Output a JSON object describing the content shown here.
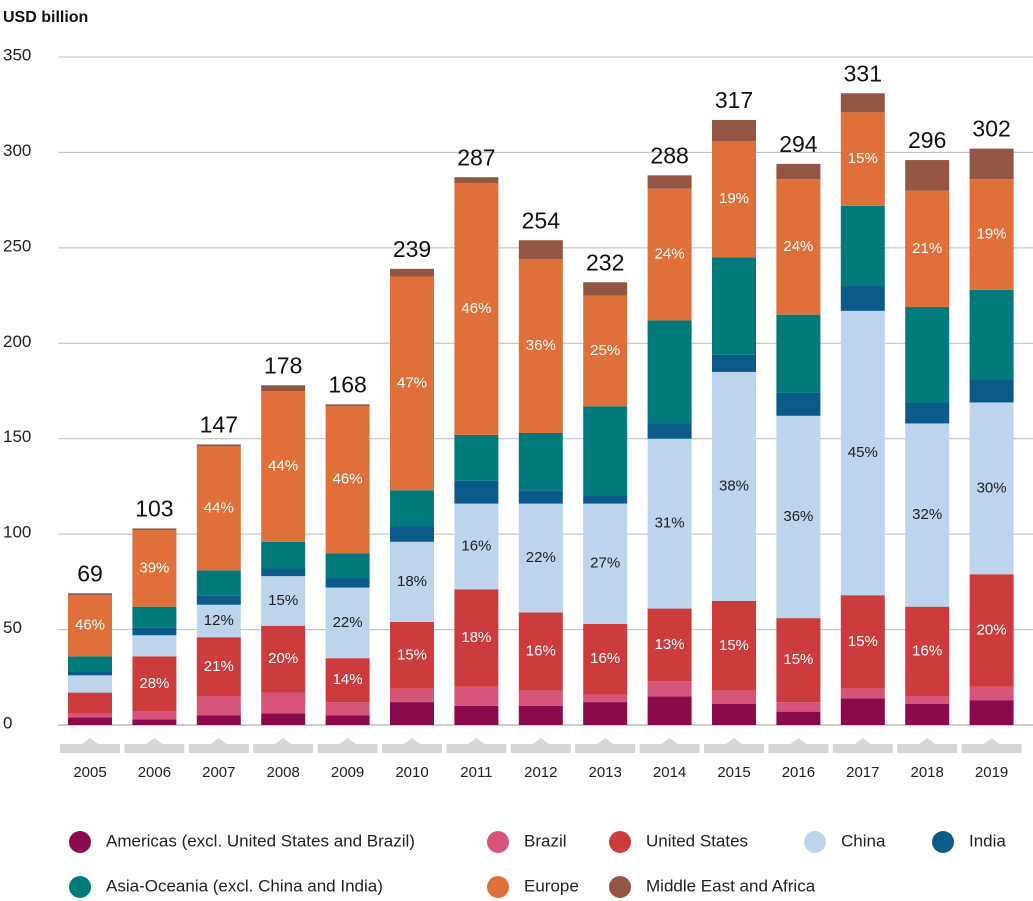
{
  "chart_data": {
    "type": "stacked-bar",
    "y_label": "USD billion",
    "categories": [
      "2005",
      "2006",
      "2007",
      "2008",
      "2009",
      "2010",
      "2011",
      "2012",
      "2013",
      "2014",
      "2015",
      "2016",
      "2017",
      "2018",
      "2019"
    ],
    "totals": [
      69,
      103,
      147,
      178,
      168,
      239,
      287,
      254,
      232,
      288,
      317,
      294,
      331,
      296,
      302
    ],
    "ylim": [
      0,
      350
    ],
    "yticks": [
      0,
      50,
      100,
      150,
      200,
      250,
      300,
      350
    ],
    "grid": true,
    "series": [
      {
        "name": "Americas (excl. United States and Brazil)",
        "color": "#8b0a4a",
        "values": [
          4,
          3,
          5,
          6,
          5,
          12,
          10,
          10,
          12,
          15,
          11,
          7,
          14,
          11,
          13
        ]
      },
      {
        "name": "Brazil",
        "color": "#d6547a",
        "values": [
          2,
          4,
          10,
          11,
          7,
          7,
          10,
          8,
          4,
          8,
          7,
          5,
          5,
          4,
          7
        ]
      },
      {
        "name": "United States",
        "color": "#cc3c3c",
        "values": [
          11,
          29,
          31,
          35,
          23,
          35,
          51,
          41,
          37,
          38,
          47,
          44,
          49,
          47,
          59
        ],
        "share_labels": [
          null,
          "28%",
          "21%",
          "20%",
          "14%",
          "15%",
          "18%",
          "16%",
          "16%",
          "13%",
          "15%",
          "15%",
          "15%",
          "16%",
          "20%"
        ]
      },
      {
        "name": "China",
        "color": "#bcd4ec",
        "values": [
          9,
          11,
          17,
          26,
          37,
          42,
          45,
          57,
          63,
          89,
          120,
          106,
          149,
          96,
          90
        ],
        "share_labels": [
          null,
          null,
          "12%",
          "15%",
          "22%",
          "18%",
          "16%",
          "22%",
          "27%",
          "31%",
          "38%",
          "36%",
          "45%",
          "32%",
          "30%"
        ]
      },
      {
        "name": "India",
        "color": "#0b5a8a",
        "values": [
          2,
          4,
          5,
          4,
          5,
          8,
          12,
          7,
          4,
          8,
          9,
          12,
          13,
          11,
          12
        ]
      },
      {
        "name": "Asia-Oceania (excl. China and India)",
        "color": "#007a7a",
        "values": [
          8,
          11,
          13,
          14,
          13,
          19,
          24,
          30,
          47,
          54,
          51,
          41,
          42,
          50,
          47
        ]
      },
      {
        "name": "Europe",
        "color": "#e0703a",
        "values": [
          32,
          40,
          65,
          79,
          77,
          112,
          132,
          91,
          58,
          69,
          61,
          71,
          49,
          61,
          58
        ],
        "share_labels": [
          "46%",
          "39%",
          "44%",
          "44%",
          "46%",
          "47%",
          "46%",
          "36%",
          "25%",
          "24%",
          "19%",
          "24%",
          "15%",
          "21%",
          "19%"
        ]
      },
      {
        "name": "Middle East and Africa",
        "color": "#935643",
        "values": [
          1,
          1,
          1,
          3,
          1,
          4,
          3,
          10,
          7,
          7,
          11,
          8,
          10,
          16,
          16
        ]
      }
    ]
  }
}
